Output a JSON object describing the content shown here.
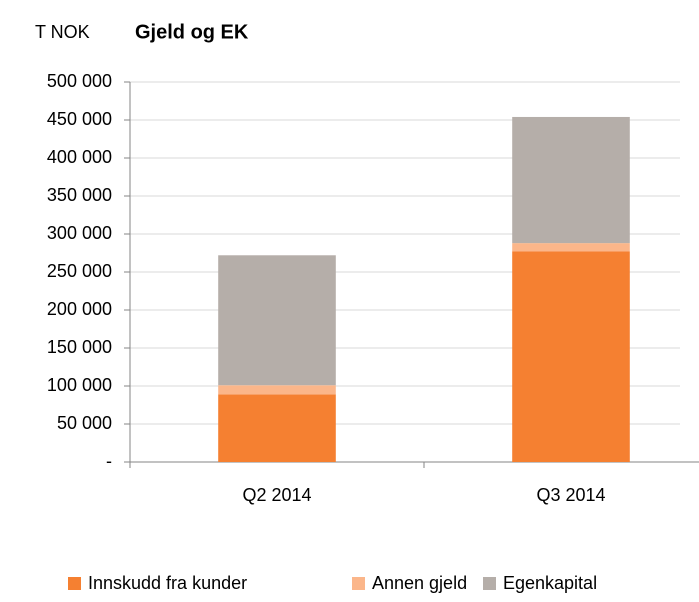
{
  "chart_data": {
    "type": "stacked_bar",
    "unit": "T NOK",
    "title": "Gjeld og EK",
    "categories": [
      "Q2 2014",
      "Q3 2014"
    ],
    "series": [
      {
        "name": "Innskudd fra kunder",
        "color": "#f58031",
        "values": [
          89000,
          277000
        ]
      },
      {
        "name": "Annen gjeld",
        "color": "#fbb68a",
        "values": [
          12000,
          11000
        ]
      },
      {
        "name": "Egenkapital",
        "color": "#b5aea9",
        "values": [
          171000,
          166000
        ]
      }
    ],
    "ylim": [
      0,
      500000
    ],
    "yticks": [
      {
        "value": 0,
        "label": "-"
      },
      {
        "value": 50000,
        "label": "50 000"
      },
      {
        "value": 100000,
        "label": "100 000"
      },
      {
        "value": 150000,
        "label": "150 000"
      },
      {
        "value": 200000,
        "label": "200 000"
      },
      {
        "value": 250000,
        "label": "250 000"
      },
      {
        "value": 300000,
        "label": "300 000"
      },
      {
        "value": 350000,
        "label": "350 000"
      },
      {
        "value": 400000,
        "label": "400 000"
      },
      {
        "value": 450000,
        "label": "450 000"
      },
      {
        "value": 500000,
        "label": "500 000"
      }
    ],
    "grid": true,
    "legend": "bottom"
  }
}
